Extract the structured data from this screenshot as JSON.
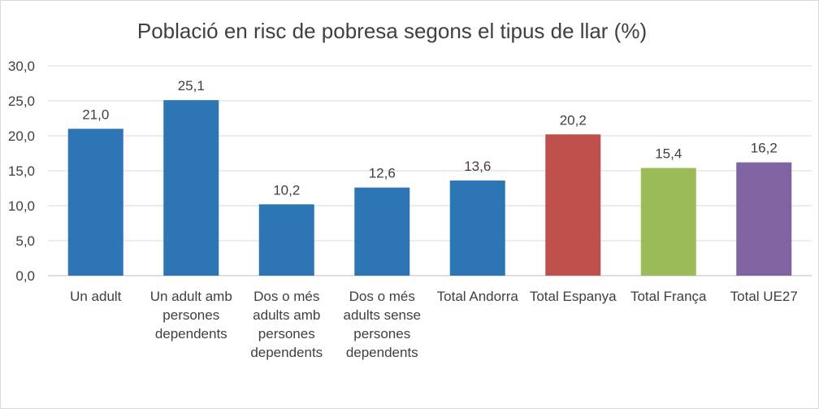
{
  "chart_data": {
    "type": "bar",
    "title": "Població en risc de pobresa segons el tipus de llar (%)",
    "categories": [
      "Un adult",
      "Un adult amb persones dependents",
      "Dos o més adults amb persones dependents",
      "Dos o més adults sense persones dependents",
      "Total Andorra",
      "Total Espanya",
      "Total França",
      "Total UE27"
    ],
    "category_lines": [
      [
        "Un adult"
      ],
      [
        "Un adult amb",
        "persones",
        "dependents"
      ],
      [
        "Dos o més",
        "adults amb",
        "persones",
        "dependents"
      ],
      [
        "Dos o més",
        "adults sense",
        "persones",
        "dependents"
      ],
      [
        "Total Andorra"
      ],
      [
        "Total Espanya"
      ],
      [
        "Total França"
      ],
      [
        "Total UE27"
      ]
    ],
    "values": [
      21.0,
      25.1,
      10.2,
      12.6,
      13.6,
      20.2,
      15.4,
      16.2
    ],
    "value_labels": [
      "21,0",
      "25,1",
      "10,2",
      "12,6",
      "13,6",
      "20,2",
      "15,4",
      "16,2"
    ],
    "bar_colors": [
      "#2e75b6",
      "#2e75b6",
      "#2e75b6",
      "#2e75b6",
      "#2e75b6",
      "#c0504d",
      "#9bbb59",
      "#8064a2"
    ],
    "ylim": [
      0,
      30
    ],
    "yticks": [
      "0,0",
      "5,0",
      "10,0",
      "15,0",
      "20,0",
      "25,0",
      "30,0"
    ],
    "grid": true,
    "xlabel": "",
    "ylabel": ""
  }
}
